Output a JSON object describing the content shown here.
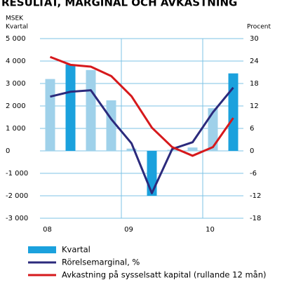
{
  "chart_data": {
    "type": "bar-line",
    "title": "RESULTAT, MARGINAL OCH AVKASTNING",
    "y_label": "MSEK",
    "y_sublabel": "Kvartal",
    "y2_label": "Procent",
    "categories": [
      "08",
      null,
      null,
      null,
      "09",
      null,
      null,
      null,
      "10",
      null
    ],
    "series": [
      {
        "name": "Kvartal",
        "type": "bar",
        "color": "#1ba1dd",
        "colors": [
          "#9fd1ea",
          "#1ba1dd",
          "#9fd1ea",
          "#9fd1ea",
          "#9fd1ea",
          "#1ba1dd",
          "#9fd1ea",
          "#9fd1ea",
          "#9fd1ea",
          "#1ba1dd"
        ],
        "values": [
          3200,
          3850,
          3600,
          2250,
          100,
          -2000,
          50,
          150,
          1900,
          3450
        ]
      },
      {
        "name": "Rörelsemarginal, %",
        "type": "line",
        "axis": "y2",
        "color": "#2b2a7c",
        "values": [
          14.5,
          15.8,
          16.2,
          8.5,
          2,
          -11.3,
          0.5,
          2.3,
          10.3,
          16.9
        ]
      },
      {
        "name": "Avkastning på sysselsatt kapital (rullande 12 mån)",
        "type": "line",
        "axis": "y2",
        "color": "#d6191c",
        "values": [
          25.1,
          23,
          22.5,
          20,
          14.6,
          6.2,
          1,
          -1.3,
          1,
          8.8
        ]
      }
    ],
    "ylim": [
      -3000,
      5000
    ],
    "yticks": [
      {
        "value": -3000,
        "label": "-3 000"
      },
      {
        "value": -2000,
        "label": "-2 000"
      },
      {
        "value": -1000,
        "label": "-1 000"
      },
      0,
      {
        "value": 1000,
        "label": "1 000"
      },
      {
        "value": 2000,
        "label": "2 000"
      },
      {
        "value": 3000,
        "label": "3 000"
      },
      {
        "value": 4000,
        "label": "4 000"
      },
      {
        "value": 5000,
        "label": "5 000"
      }
    ],
    "y2lim": [
      -18,
      30
    ],
    "y2ticks": [
      -18,
      -12,
      -6,
      0,
      6,
      12,
      18,
      24,
      30
    ],
    "grid": true
  }
}
